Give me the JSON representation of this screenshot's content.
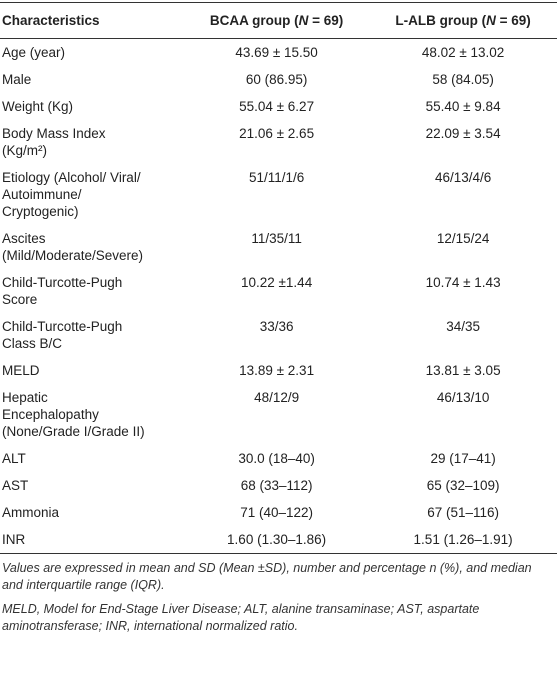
{
  "table": {
    "header": [
      [
        {
          "text": "Characteristics"
        }
      ],
      [
        {
          "text": "BCAA group ("
        },
        {
          "text": "N",
          "italic": true
        },
        {
          "text": " = 69)"
        }
      ],
      [
        {
          "text": "L-ALB group ("
        },
        {
          "text": "N",
          "italic": true
        },
        {
          "text": " = 69)"
        }
      ]
    ],
    "rows": [
      [
        [
          "Age (year)"
        ],
        "43.69 ± 15.50",
        "48.02 ± 13.02"
      ],
      [
        [
          "Male"
        ],
        "60 (86.95)",
        "58 (84.05)"
      ],
      [
        [
          "Weight (Kg)"
        ],
        "55.04 ± 6.27",
        "55.40 ± 9.84"
      ],
      [
        [
          "Body Mass Index",
          "(Kg/m²)"
        ],
        "21.06 ± 2.65",
        "22.09 ± 3.54"
      ],
      [
        [
          "Etiology (Alcohol/ Viral/",
          "Autoimmune/",
          "Cryptogenic)"
        ],
        "51/11/1/6",
        "46/13/4/6"
      ],
      [
        [
          "Ascites",
          "(Mild/Moderate/Severe)"
        ],
        "11/35/11",
        "12/15/24"
      ],
      [
        [
          "Child-Turcotte-Pugh",
          "Score"
        ],
        "10.22 ±1.44",
        "10.74 ± 1.43"
      ],
      [
        [
          "Child-Turcotte-Pugh",
          "Class B/C"
        ],
        "33/36",
        "34/35"
      ],
      [
        [
          "MELD"
        ],
        "13.89 ± 2.31",
        "13.81 ± 3.05"
      ],
      [
        [
          "Hepatic",
          "Encephalopathy",
          "(None/Grade I/Grade II)"
        ],
        "48/12/9",
        "46/13/10"
      ],
      [
        [
          "ALT"
        ],
        "30.0 (18–40)",
        "29 (17–41)"
      ],
      [
        [
          "AST"
        ],
        "68 (33–112)",
        "65 (32–109)"
      ],
      [
        [
          "Ammonia"
        ],
        "71 (40–122)",
        "67 (51–116)"
      ],
      [
        [
          "INR"
        ],
        "1.60 (1.30–1.86)",
        "1.51 (1.26–1.91)"
      ]
    ]
  },
  "footnotes": [
    "Values are expressed in mean and SD (Mean ±SD), number and percentage n (%), and median and interquartile range (IQR).",
    "MELD, Model for End-Stage Liver Disease; ALT, alanine transaminase; AST, aspartate aminotransferase; INR, international normalized ratio."
  ]
}
